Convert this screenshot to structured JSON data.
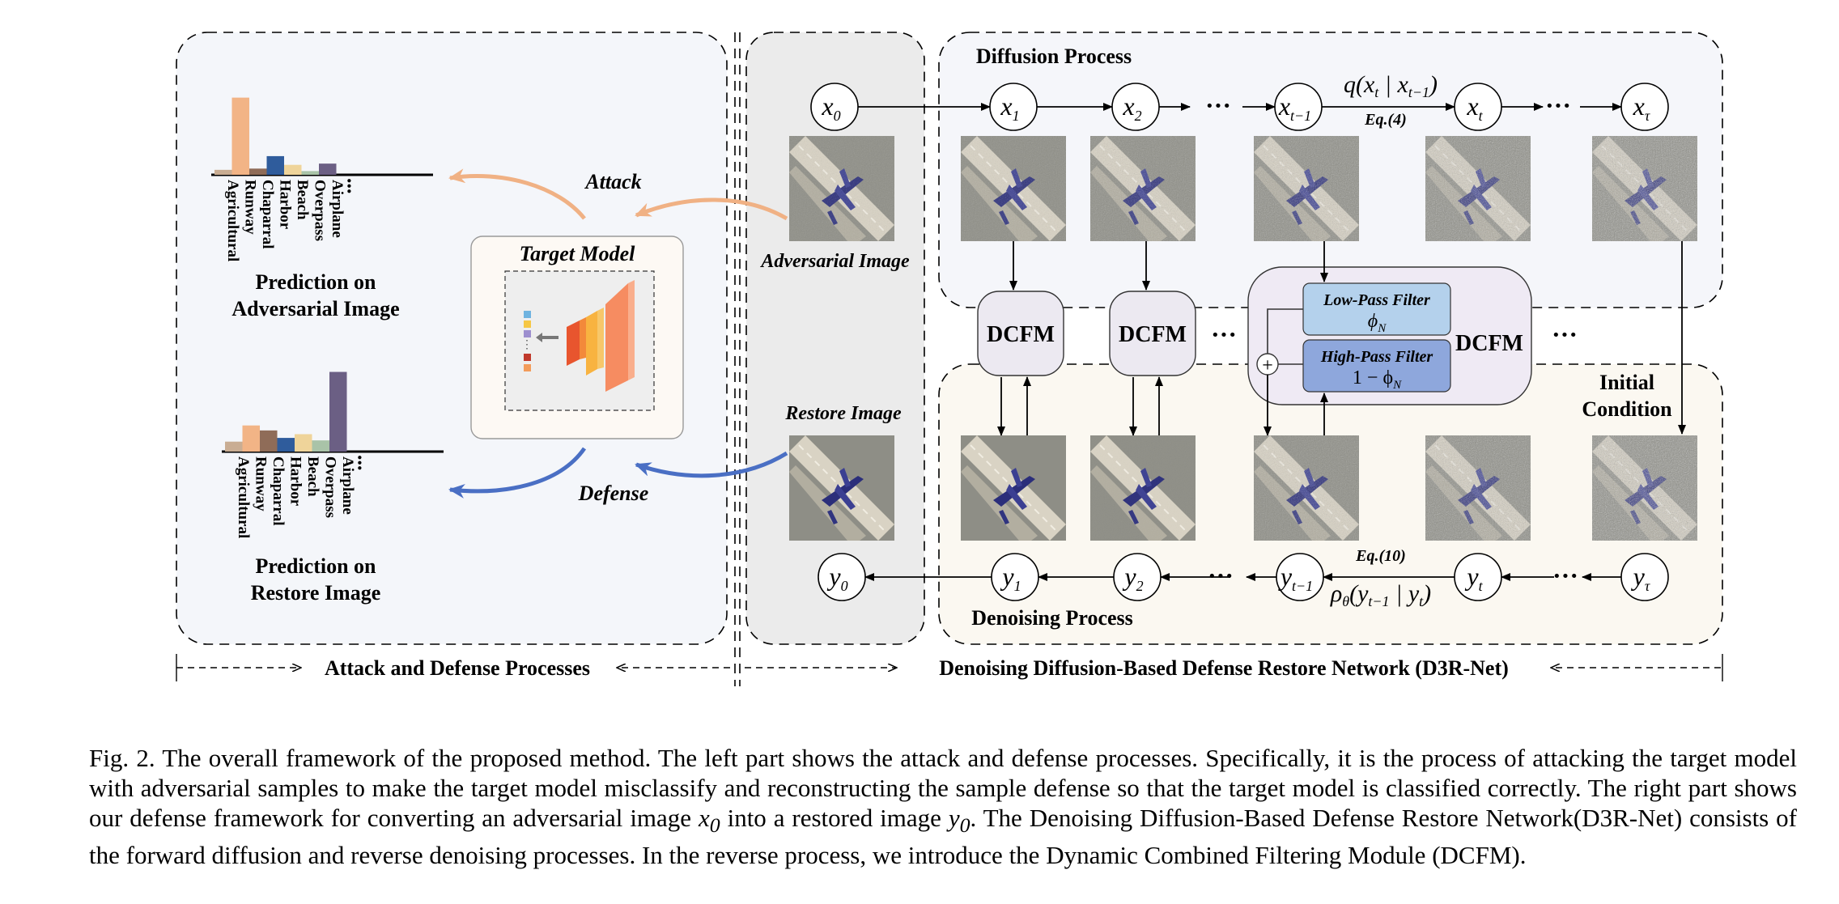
{
  "sections": {
    "left_title": "Attack and Defense Processes",
    "right_title": "Denoising Diffusion-Based Defense Restore Network (D3R-Net)",
    "diffusion_title": "Diffusion Process",
    "denoising_title": "Denoising Process"
  },
  "left": {
    "attack_label": "Attack",
    "defense_label": "Defense",
    "target_model_label": "Target Model",
    "prediction_adversarial": [
      "Prediction on",
      "Adversarial Image"
    ],
    "prediction_restore": [
      "Prediction on",
      "Restore Image"
    ],
    "adversarial_image_label": "Adversarial Image",
    "restore_image_label": "Restore Image"
  },
  "chart_data": [
    {
      "type": "bar",
      "categories": [
        "Agricultural",
        "Runway",
        "Chaparral",
        "Harbor",
        "Beach",
        "Overpass",
        "Airplane"
      ],
      "values": [
        4,
        62,
        5,
        15,
        8,
        3,
        9
      ],
      "ellipsis": "...",
      "colors": [
        "#c9ad93",
        "#f2b486",
        "#8f6c58",
        "#2f5c9c",
        "#efd49a",
        "#a9c3a8",
        "#6b5f84"
      ]
    },
    {
      "type": "bar",
      "categories": [
        "Agricultural",
        "Runway",
        "Chaparral",
        "Harbor",
        "Beach",
        "Overpass",
        "Airplane"
      ],
      "values": [
        8,
        21,
        17,
        11,
        14,
        9,
        64
      ],
      "ellipsis": "...",
      "colors": [
        "#c9ad93",
        "#f2b486",
        "#8f6c58",
        "#2f5c9c",
        "#efd49a",
        "#a9c3a8",
        "#6b5f84"
      ]
    }
  ],
  "diffusion": {
    "nodes": [
      {
        "base": "x",
        "sub": "0"
      },
      {
        "base": "x",
        "sub": "1"
      },
      {
        "base": "x",
        "sub": "2"
      },
      {
        "base": "x",
        "sub": "t−1"
      },
      {
        "base": "x",
        "sub": "t"
      },
      {
        "base": "x",
        "sub": "τ"
      }
    ],
    "q_formula": {
      "q": "q(",
      "x1": "x",
      "s1": "t",
      "bar": " | ",
      "x2": "x",
      "s2": "t−1",
      "close": ")"
    },
    "eq_label": "Eq.(4)"
  },
  "denoising": {
    "nodes": [
      {
        "base": "y",
        "sub": "0"
      },
      {
        "base": "y",
        "sub": "1"
      },
      {
        "base": "y",
        "sub": "2"
      },
      {
        "base": "y",
        "sub": "t−1"
      },
      {
        "base": "y",
        "sub": "t"
      },
      {
        "base": "y",
        "sub": "τ"
      }
    ],
    "rho_formula": {
      "rho": "ρ",
      "rsub": "θ",
      "open": "(",
      "y1": "y",
      "s1": "t−1",
      "bar": " | ",
      "y2": "y",
      "s2": "t",
      "close": ")"
    },
    "eq_label": "Eq.(10)"
  },
  "dcfm": {
    "label": "DCFM",
    "low_pass": {
      "title": "Low-Pass Filter",
      "symbol": "ϕ",
      "sub": "N"
    },
    "high_pass": {
      "title": "High-Pass Filter",
      "prefix": "1 − ϕ",
      "sub": "N"
    },
    "plus": "+"
  },
  "initial_condition": [
    "Initial",
    "Condition"
  ],
  "ellipsis": "···",
  "caption": {
    "parts": [
      "Fig. 2.  The overall framework of the proposed method. The left part shows the attack and defense processes. Specifically, it is the process of attacking the target model with adversarial samples to make the target model misclassify and reconstructing the sample defense so that the target model is classified correctly. The right part shows our defense framework for converting an adversarial image ",
      " into a restored image ",
      ". The Denoising Diffusion-Based Defense Restore Network(D3R-Net) consists of the forward diffusion and reverse denoising processes. In the reverse process, we introduce the Dynamic Combined Filtering Module (DCFM)."
    ],
    "math": [
      "x",
      "0",
      "y",
      "0"
    ]
  },
  "colors": {
    "left_panel": "#f4f6fa",
    "adv_column": "#ebebeb",
    "diffusion_panel": "#f5f6fa",
    "denoise_panel": "#fbf8f1",
    "dcfm_block": "#ece9f1",
    "dcfm_big": "#efeaf4",
    "low_pass": "#b4d1ec",
    "high_pass": "#8ea7dc",
    "attack_arrow": "#f0b184",
    "defense_arrow": "#4a6fc4",
    "runway": "#d8d2c4",
    "noise": "#8a8a84"
  }
}
